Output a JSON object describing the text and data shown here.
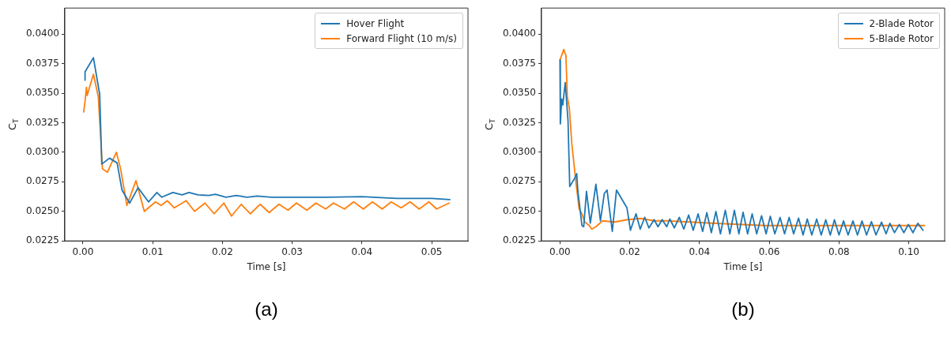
{
  "chart_data": [
    {
      "type": "line",
      "xlabel": "Time [s]",
      "ylabel": "C$_{T}$",
      "annotations": [
        "(a)"
      ],
      "legend": "top right",
      "xlim": [
        -0.0026,
        0.0552
      ],
      "ylim": [
        0.0225,
        0.0422
      ],
      "xticks": [
        {
          "value": 0,
          "label": "0.00"
        },
        {
          "value": 0.01,
          "label": "0.01"
        },
        {
          "value": 0.02,
          "label": "0.02"
        },
        {
          "value": 0.03,
          "label": "0.03"
        },
        {
          "value": 0.04,
          "label": "0.04"
        },
        {
          "value": 0.05,
          "label": "0.05"
        }
      ],
      "yticks": [
        0.0225,
        {
          "value": 0.025,
          "label": "0.0250"
        },
        0.0275,
        {
          "value": 0.03,
          "label": "0.0300"
        },
        0.0325,
        {
          "value": 0.035,
          "label": "0.0350"
        },
        0.0375,
        {
          "value": 0.04,
          "label": "0.0400"
        }
      ],
      "series": [
        {
          "name": "Hover Flight",
          "color": "#1f77b4",
          "x": [
            0.0003,
            0.0003,
            0.0015,
            0.0024,
            0.0027,
            0.0038,
            0.0049,
            0.0056,
            0.0067,
            0.0079,
            0.0094,
            0.0106,
            0.0113,
            0.0129,
            0.0142,
            0.0152,
            0.0165,
            0.018,
            0.019,
            0.0205,
            0.022,
            0.0235,
            0.025,
            0.027,
            0.03,
            0.035,
            0.04,
            0.045,
            0.05,
            0.0526
          ],
          "values": [
            0.0361,
            0.0368,
            0.038,
            0.0349,
            0.029,
            0.0295,
            0.0291,
            0.0268,
            0.0257,
            0.027,
            0.0258,
            0.0266,
            0.0262,
            0.0266,
            0.0264,
            0.0266,
            0.0264,
            0.02635,
            0.02645,
            0.0262,
            0.02635,
            0.0262,
            0.0263,
            0.0262,
            0.0262,
            0.0262,
            0.02625,
            0.0261,
            0.0261,
            0.026
          ]
        },
        {
          "name": "Forward Flight (10 m/s)",
          "color": "#ff7f0e",
          "x": [
            0.0001,
            0.0003,
            0.0005,
            0.0006,
            0.0015,
            0.0022,
            0.0028,
            0.0035,
            0.0048,
            0.0054,
            0.0063,
            0.0076,
            0.0088,
            0.0104,
            0.0112,
            0.0121,
            0.0131,
            0.0148,
            0.016,
            0.0175,
            0.0188,
            0.0202,
            0.0213,
            0.0227,
            0.024,
            0.0254,
            0.0267,
            0.0281,
            0.0294,
            0.0306,
            0.0321,
            0.0334,
            0.0348,
            0.0359,
            0.0375,
            0.0388,
            0.0402,
            0.0415,
            0.0429,
            0.0442,
            0.0456,
            0.0469,
            0.0482,
            0.0496,
            0.0507,
            0.0525
          ],
          "values": [
            0.0334,
            0.0343,
            0.0355,
            0.0348,
            0.0366,
            0.0347,
            0.0286,
            0.0283,
            0.03,
            0.0286,
            0.0255,
            0.0276,
            0.025,
            0.0258,
            0.0255,
            0.0259,
            0.0253,
            0.0259,
            0.025,
            0.0257,
            0.0248,
            0.0257,
            0.0246,
            0.0256,
            0.0248,
            0.0256,
            0.0249,
            0.0256,
            0.0251,
            0.0257,
            0.0251,
            0.0257,
            0.0252,
            0.0257,
            0.0252,
            0.0258,
            0.0252,
            0.0258,
            0.0252,
            0.0258,
            0.0253,
            0.0258,
            0.0252,
            0.0258,
            0.0252,
            0.0257
          ]
        }
      ]
    },
    {
      "type": "line",
      "xlabel": "Time [s]",
      "ylabel": "C$_{T}$",
      "annotations": [
        "(b)"
      ],
      "legend": "top right",
      "xlim": [
        -0.0053,
        0.1103
      ],
      "ylim": [
        0.0225,
        0.0422
      ],
      "xticks": [
        {
          "value": 0,
          "label": "0.00"
        },
        {
          "value": 0.02,
          "label": "0.02"
        },
        {
          "value": 0.04,
          "label": "0.04"
        },
        {
          "value": 0.06,
          "label": "0.06"
        },
        {
          "value": 0.08,
          "label": "0.08"
        },
        {
          "value": 0.1,
          "label": "0.10"
        }
      ],
      "yticks": [
        0.0225,
        {
          "value": 0.025,
          "label": "0.0250"
        },
        0.0275,
        {
          "value": 0.03,
          "label": "0.0300"
        },
        0.0325,
        {
          "value": 0.035,
          "label": "0.0350"
        },
        0.0375,
        {
          "value": 0.04,
          "label": "0.0400"
        }
      ],
      "series": [
        {
          "name": "2-Blade Rotor",
          "color": "#1f77b4",
          "x": [
            0,
            0.0001,
            0.0005,
            0.0008,
            0.0015,
            0.0023,
            0.0028,
            0.0042,
            0.0048,
            0.0051,
            0.0063,
            0.0068,
            0.0076,
            0.0087,
            0.0103,
            0.0116,
            0.0127,
            0.0135,
            0.015,
            0.0162,
            0.0192,
            0.0202,
            0.0218,
            0.023,
            0.0243,
            0.0255,
            0.027,
            0.0281,
            0.0293,
            0.0306,
            0.0315,
            0.0328,
            0.0342,
            0.0355,
            0.0369,
            0.0382,
            0.0396,
            0.0409,
            0.0421,
            0.0434,
            0.0447,
            0.046,
            0.0474,
            0.0487,
            0.05,
            0.0513,
            0.0525,
            0.0538,
            0.0551,
            0.0564,
            0.0578,
            0.0591,
            0.0603,
            0.0616,
            0.0631,
            0.0644,
            0.0657,
            0.067,
            0.0684,
            0.0697,
            0.0709,
            0.0722,
            0.0736,
            0.0749,
            0.0762,
            0.0775,
            0.0787,
            0.08,
            0.0813,
            0.0826,
            0.084,
            0.0853,
            0.0866,
            0.0879,
            0.0893,
            0.0906,
            0.0922,
            0.0935,
            0.0946,
            0.0959,
            0.0973,
            0.0986,
            0.0999,
            0.1012,
            0.1026,
            0.1041
          ],
          "values": [
            0.0378,
            0.0324,
            0.0345,
            0.034,
            0.0359,
            0.0327,
            0.0271,
            0.0278,
            0.0282,
            0.0268,
            0.0238,
            0.0237,
            0.0267,
            0.024,
            0.0273,
            0.0242,
            0.0265,
            0.0268,
            0.0233,
            0.0268,
            0.0253,
            0.0234,
            0.0248,
            0.0235,
            0.0245,
            0.0236,
            0.0243,
            0.0237,
            0.0243,
            0.0237,
            0.02435,
            0.0236,
            0.02449,
            0.0235,
            0.02469,
            0.0234,
            0.02479,
            0.0233,
            0.02489,
            0.0232,
            0.02499,
            0.0231,
            0.02509,
            0.0231,
            0.02509,
            0.0231,
            0.02493,
            0.0231,
            0.02479,
            0.0231,
            0.02463,
            0.0231,
            0.02459,
            0.0231,
            0.02449,
            0.0231,
            0.02449,
            0.0231,
            0.02443,
            0.023,
            0.02435,
            0.023,
            0.02435,
            0.023,
            0.02429,
            0.023,
            0.02429,
            0.023,
            0.02419,
            0.023,
            0.02419,
            0.023,
            0.02419,
            0.023,
            0.02413,
            0.023,
            0.02409,
            0.0231,
            0.02399,
            0.0232,
            0.02389,
            0.0232,
            0.02389,
            0.0232,
            0.02399,
            0.0234
          ]
        },
        {
          "name": "5-Blade Rotor",
          "color": "#ff7f0e",
          "x": [
            0,
            0.0011,
            0.0014,
            0.0017,
            0.0021,
            0.0027,
            0.0034,
            0.0046,
            0.0055,
            0.0063,
            0.0071,
            0.0084,
            0.0091,
            0.0103,
            0.0122,
            0.0156,
            0.0194,
            0.0232,
            0.027,
            0.0306,
            0.0437,
            0.0589,
            0.0741,
            0.0893,
            0.1045
          ],
          "values": [
            0.0378,
            0.0387,
            0.0384,
            0.0382,
            0.0347,
            0.0337,
            0.0307,
            0.0274,
            0.0252,
            0.0248,
            0.0241,
            0.0238,
            0.0235,
            0.0237,
            0.0242,
            0.0241,
            0.0243,
            0.0244,
            0.0242,
            0.0242,
            0.024,
            0.0238,
            0.0238,
            0.0238,
            0.0238
          ]
        }
      ]
    }
  ]
}
